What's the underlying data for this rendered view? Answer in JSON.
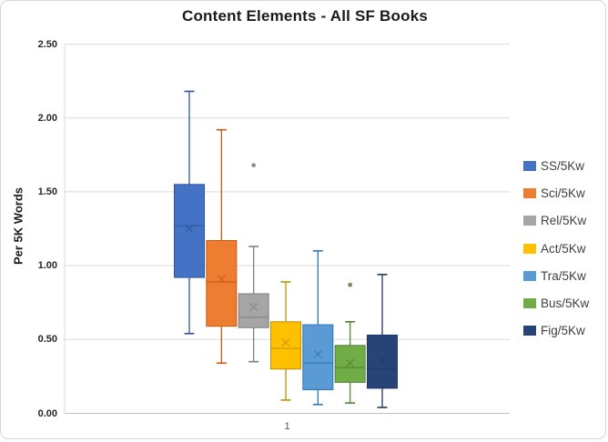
{
  "title": "Content Elements - All SF Books",
  "y_axis": {
    "title": "Per 5K Words",
    "ticks": [
      "2.50",
      "2.00",
      "1.50",
      "1.00",
      "0.50",
      "0.00"
    ]
  },
  "x_axis": {
    "label": "1"
  },
  "legend": [
    {
      "label": "SS/5Kw"
    },
    {
      "label": "Sci/5Kw"
    },
    {
      "label": "Rel/5Kw"
    },
    {
      "label": "Act/5Kw"
    },
    {
      "label": "Tra/5Kw"
    },
    {
      "label": "Bus/5Kw"
    },
    {
      "label": "Fig/5Kw"
    }
  ],
  "colors": {
    "gridline": "#D9D9D9",
    "axis_line": "#BFBFBF",
    "title_text": "#1A1A1A",
    "tick_text": "#262626",
    "xlabel_text": "#595959",
    "legend_text": "#404040"
  },
  "chart_data": {
    "type": "boxplot",
    "title": "Content Elements - All SF Books",
    "xlabel": "",
    "ylabel": "Per 5K Words",
    "x_category": "1",
    "ylim": [
      0,
      2.5
    ],
    "ytick_step": 0.5,
    "grid": true,
    "legend_position": "right",
    "series": [
      {
        "name": "SS/5Kw",
        "fill": "#4472C4",
        "stroke": "#2F5597",
        "min": 0.54,
        "q1": 0.92,
        "median": 1.27,
        "mean": 1.25,
        "q3": 1.55,
        "max": 2.18,
        "outliers": []
      },
      {
        "name": "Sci/5Kw",
        "fill": "#ED7D31",
        "stroke": "#C55A11",
        "min": 0.34,
        "q1": 0.59,
        "median": 0.89,
        "mean": 0.91,
        "q3": 1.17,
        "max": 1.92,
        "outliers": []
      },
      {
        "name": "Rel/5Kw",
        "fill": "#A5A5A5",
        "stroke": "#7F7F7F",
        "min": 0.35,
        "q1": 0.58,
        "median": 0.65,
        "mean": 0.72,
        "q3": 0.81,
        "max": 1.13,
        "outliers": [
          1.68
        ]
      },
      {
        "name": "Act/5Kw",
        "fill": "#FFC000",
        "stroke": "#BF9000",
        "min": 0.09,
        "q1": 0.3,
        "median": 0.44,
        "mean": 0.48,
        "q3": 0.62,
        "max": 0.89,
        "outliers": []
      },
      {
        "name": "Tra/5Kw",
        "fill": "#5B9BD5",
        "stroke": "#2E75B6",
        "min": 0.06,
        "q1": 0.16,
        "median": 0.34,
        "mean": 0.4,
        "q3": 0.6,
        "max": 1.1,
        "outliers": []
      },
      {
        "name": "Bus/5Kw",
        "fill": "#70AD47",
        "stroke": "#538135",
        "min": 0.07,
        "q1": 0.21,
        "median": 0.31,
        "mean": 0.34,
        "q3": 0.46,
        "max": 0.62,
        "outliers": [
          0.87
        ]
      },
      {
        "name": "Fig/5Kw",
        "fill": "#264478",
        "stroke": "#1F3864",
        "min": 0.04,
        "q1": 0.17,
        "median": 0.3,
        "mean": 0.36,
        "q3": 0.53,
        "max": 0.94,
        "outliers": []
      }
    ]
  }
}
